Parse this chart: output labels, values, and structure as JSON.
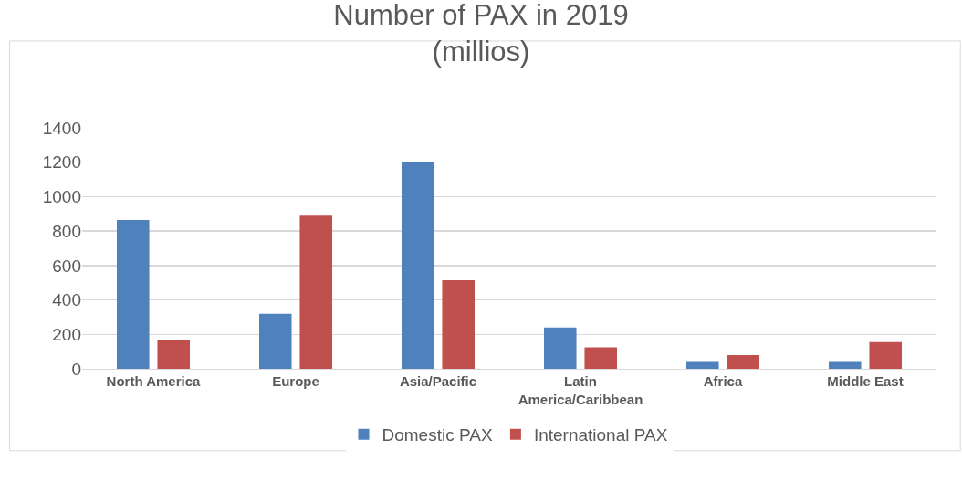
{
  "chart_data": {
    "type": "bar",
    "title": "Number of PAX in 2019\n(millios)",
    "categories": [
      "North America",
      "Europe",
      "Asia/Pacific",
      "Latin America/Caribbean",
      "Africa",
      "Middle East"
    ],
    "series": [
      {
        "name": "Domestic PAX",
        "color": "#4f81bd",
        "values": [
          865,
          320,
          1200,
          240,
          40,
          40
        ]
      },
      {
        "name": "International PAX",
        "color": "#c0504d",
        "values": [
          170,
          890,
          515,
          125,
          80,
          155
        ]
      }
    ],
    "ylim": [
      0,
      1400
    ],
    "yticks": [
      0,
      200,
      400,
      600,
      800,
      1000,
      1200,
      1400
    ],
    "grid": "y",
    "legend": "bottom"
  }
}
